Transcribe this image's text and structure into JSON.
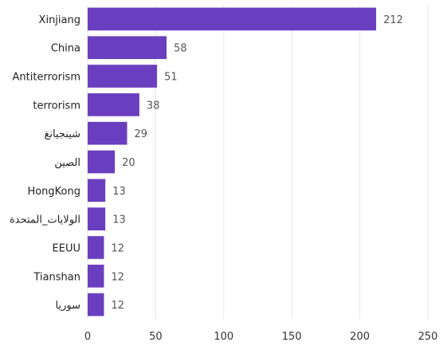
{
  "chart_data": {
    "type": "bar",
    "orientation": "horizontal",
    "categories": [
      "Xinjiang",
      "China",
      "Antiterrorism",
      "terrorism",
      "شينجيانغ",
      "الصين",
      "HongKong",
      "الولايات_المتحدة",
      "EEUU",
      "Tianshan",
      "سوريا"
    ],
    "values": [
      212,
      58,
      51,
      38,
      29,
      20,
      13,
      13,
      12,
      12,
      12
    ],
    "xlim": [
      0,
      250
    ],
    "x_ticks": [
      0,
      50,
      100,
      150,
      200,
      250
    ],
    "grid": "vertical",
    "bar_color": "#6a3fbf",
    "data_labels": true,
    "title": "",
    "xlabel": "",
    "ylabel": ""
  }
}
